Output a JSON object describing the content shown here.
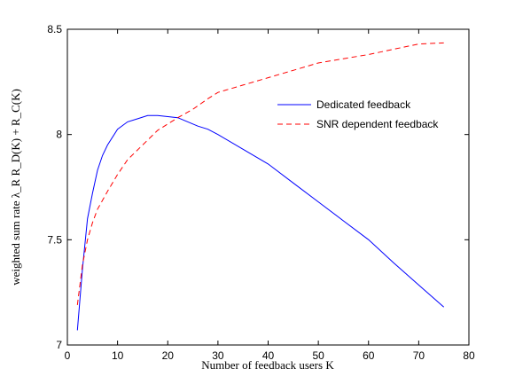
{
  "chart_data": {
    "type": "line",
    "title": "",
    "xlabel": "Number of feedback users K",
    "ylabel": "weighted sum rate λ_R R_D(K) + R_C(K)",
    "xlim": [
      0,
      80
    ],
    "ylim": [
      7,
      8.5
    ],
    "xticks": [
      0,
      10,
      20,
      30,
      40,
      50,
      60,
      70,
      80
    ],
    "yticks": [
      7,
      7.5,
      8,
      8.5
    ],
    "xtick_labels": [
      "0",
      "10",
      "20",
      "30",
      "40",
      "50",
      "60",
      "70",
      "80"
    ],
    "ytick_labels": [
      "7",
      "7.5",
      "8",
      "8.5"
    ],
    "grid": false,
    "legend_position": "upper-right",
    "series": [
      {
        "name": "Dedicated feedback",
        "color": "#0000ff",
        "line_style": "solid",
        "x": [
          2,
          3,
          4,
          5,
          6,
          7,
          8,
          10,
          12,
          14,
          16,
          18,
          20,
          22,
          24,
          26,
          28,
          30,
          35,
          40,
          45,
          50,
          55,
          60,
          65,
          70,
          75
        ],
        "y": [
          7.07,
          7.36,
          7.6,
          7.72,
          7.83,
          7.9,
          7.95,
          8.025,
          8.06,
          8.075,
          8.09,
          8.09,
          8.085,
          8.08,
          8.06,
          8.04,
          8.025,
          8.0,
          7.93,
          7.86,
          7.77,
          7.68,
          7.59,
          7.5,
          7.39,
          7.285,
          7.18
        ]
      },
      {
        "name": "SNR dependent feedback",
        "color": "#ff0000",
        "line_style": "dashed",
        "x": [
          2,
          3,
          4,
          5,
          6,
          8,
          10,
          12,
          15,
          18,
          20,
          22,
          25,
          28,
          30,
          35,
          40,
          45,
          50,
          55,
          60,
          65,
          70,
          75
        ],
        "y": [
          7.19,
          7.38,
          7.5,
          7.58,
          7.645,
          7.73,
          7.81,
          7.88,
          7.95,
          8.02,
          8.05,
          8.08,
          8.12,
          8.17,
          8.2,
          8.235,
          8.27,
          8.305,
          8.34,
          8.36,
          8.38,
          8.405,
          8.43,
          8.435
        ]
      }
    ]
  }
}
